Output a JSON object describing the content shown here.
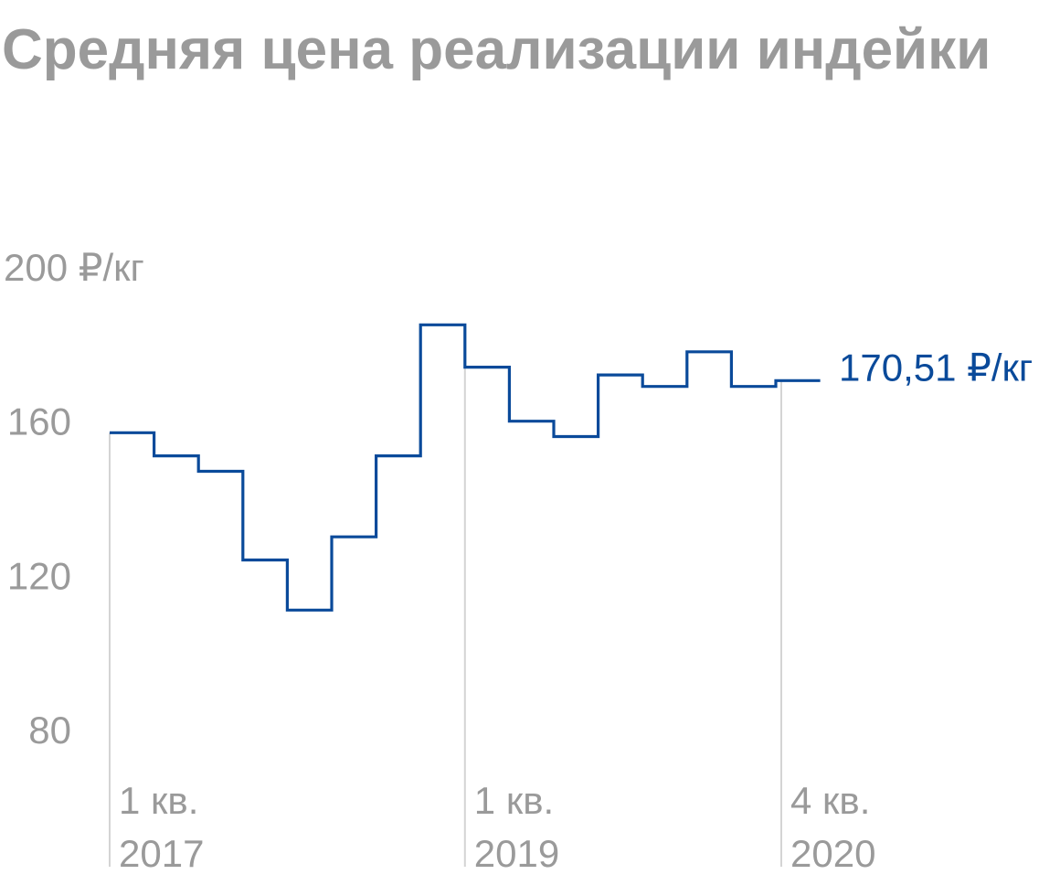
{
  "chart_data": {
    "type": "line",
    "title": "Средняя цена реализации индейки",
    "ylabel_unit": "₽/кг",
    "y_ticks": [
      "200 ₽/кг",
      "160",
      "120",
      "80"
    ],
    "ylim": [
      80,
      200
    ],
    "step": true,
    "x_labels": [
      {
        "line1": "1 кв.",
        "line2": "2017",
        "index": 0
      },
      {
        "line1": "1 кв.",
        "line2": "2019",
        "index": 8
      },
      {
        "line1": "4 кв.",
        "line2": "2020",
        "index": 15
      }
    ],
    "series": [
      {
        "color": "#0a4a9a",
        "values": [
          157,
          151,
          147,
          124,
          111,
          130,
          151,
          185,
          174,
          160,
          156,
          172,
          169,
          178,
          169,
          170.51
        ]
      }
    ],
    "end_label": "170,51 ₽/кг",
    "grid": false
  }
}
